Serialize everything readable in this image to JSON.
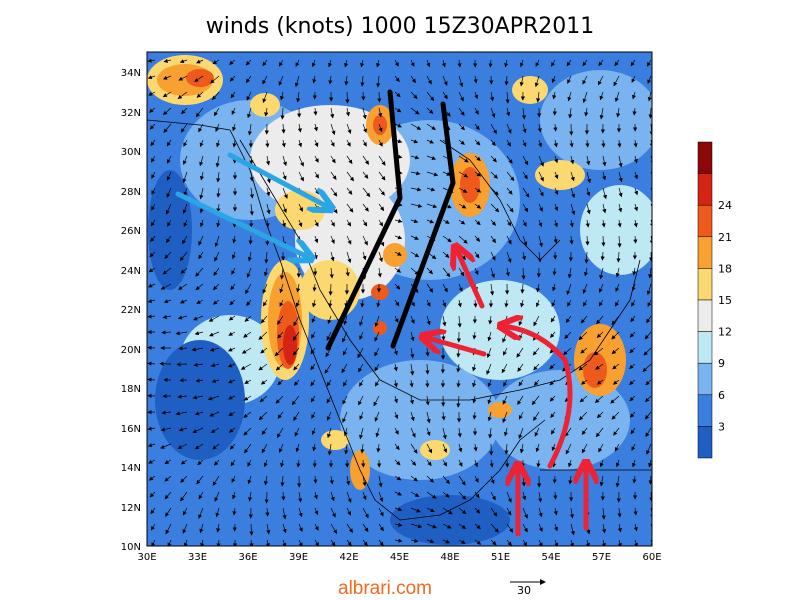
{
  "title": "winds (knots) 1000 15Z30APR2011",
  "watermark": "albrari.com",
  "reference_vector": {
    "label": "30",
    "knots": 30
  },
  "map": {
    "lon_range": [
      30,
      60
    ],
    "lat_range": [
      10,
      35
    ],
    "lon_ticks": [
      "30E",
      "33E",
      "36E",
      "39E",
      "42E",
      "45E",
      "48E",
      "51E",
      "54E",
      "57E",
      "60E"
    ],
    "lat_ticks": [
      "10N",
      "12N",
      "14N",
      "16N",
      "18N",
      "20N",
      "22N",
      "24N",
      "26N",
      "28N",
      "30N",
      "32N",
      "34N"
    ]
  },
  "colorbar": {
    "tick_labels": [
      "3",
      "6",
      "9",
      "12",
      "15",
      "18",
      "21",
      "24"
    ],
    "colors": [
      "#1f5fc4",
      "#3a7fe0",
      "#79b3f0",
      "#bfe8f5",
      "#ececec",
      "#fcd870",
      "#f8a030",
      "#ee5a1c",
      "#d52414",
      "#8c0808"
    ]
  },
  "annotations": {
    "black_lines": "convergence lines",
    "blue_arrows": "northwesterly flow",
    "red_arrows": "southerly flow"
  }
}
